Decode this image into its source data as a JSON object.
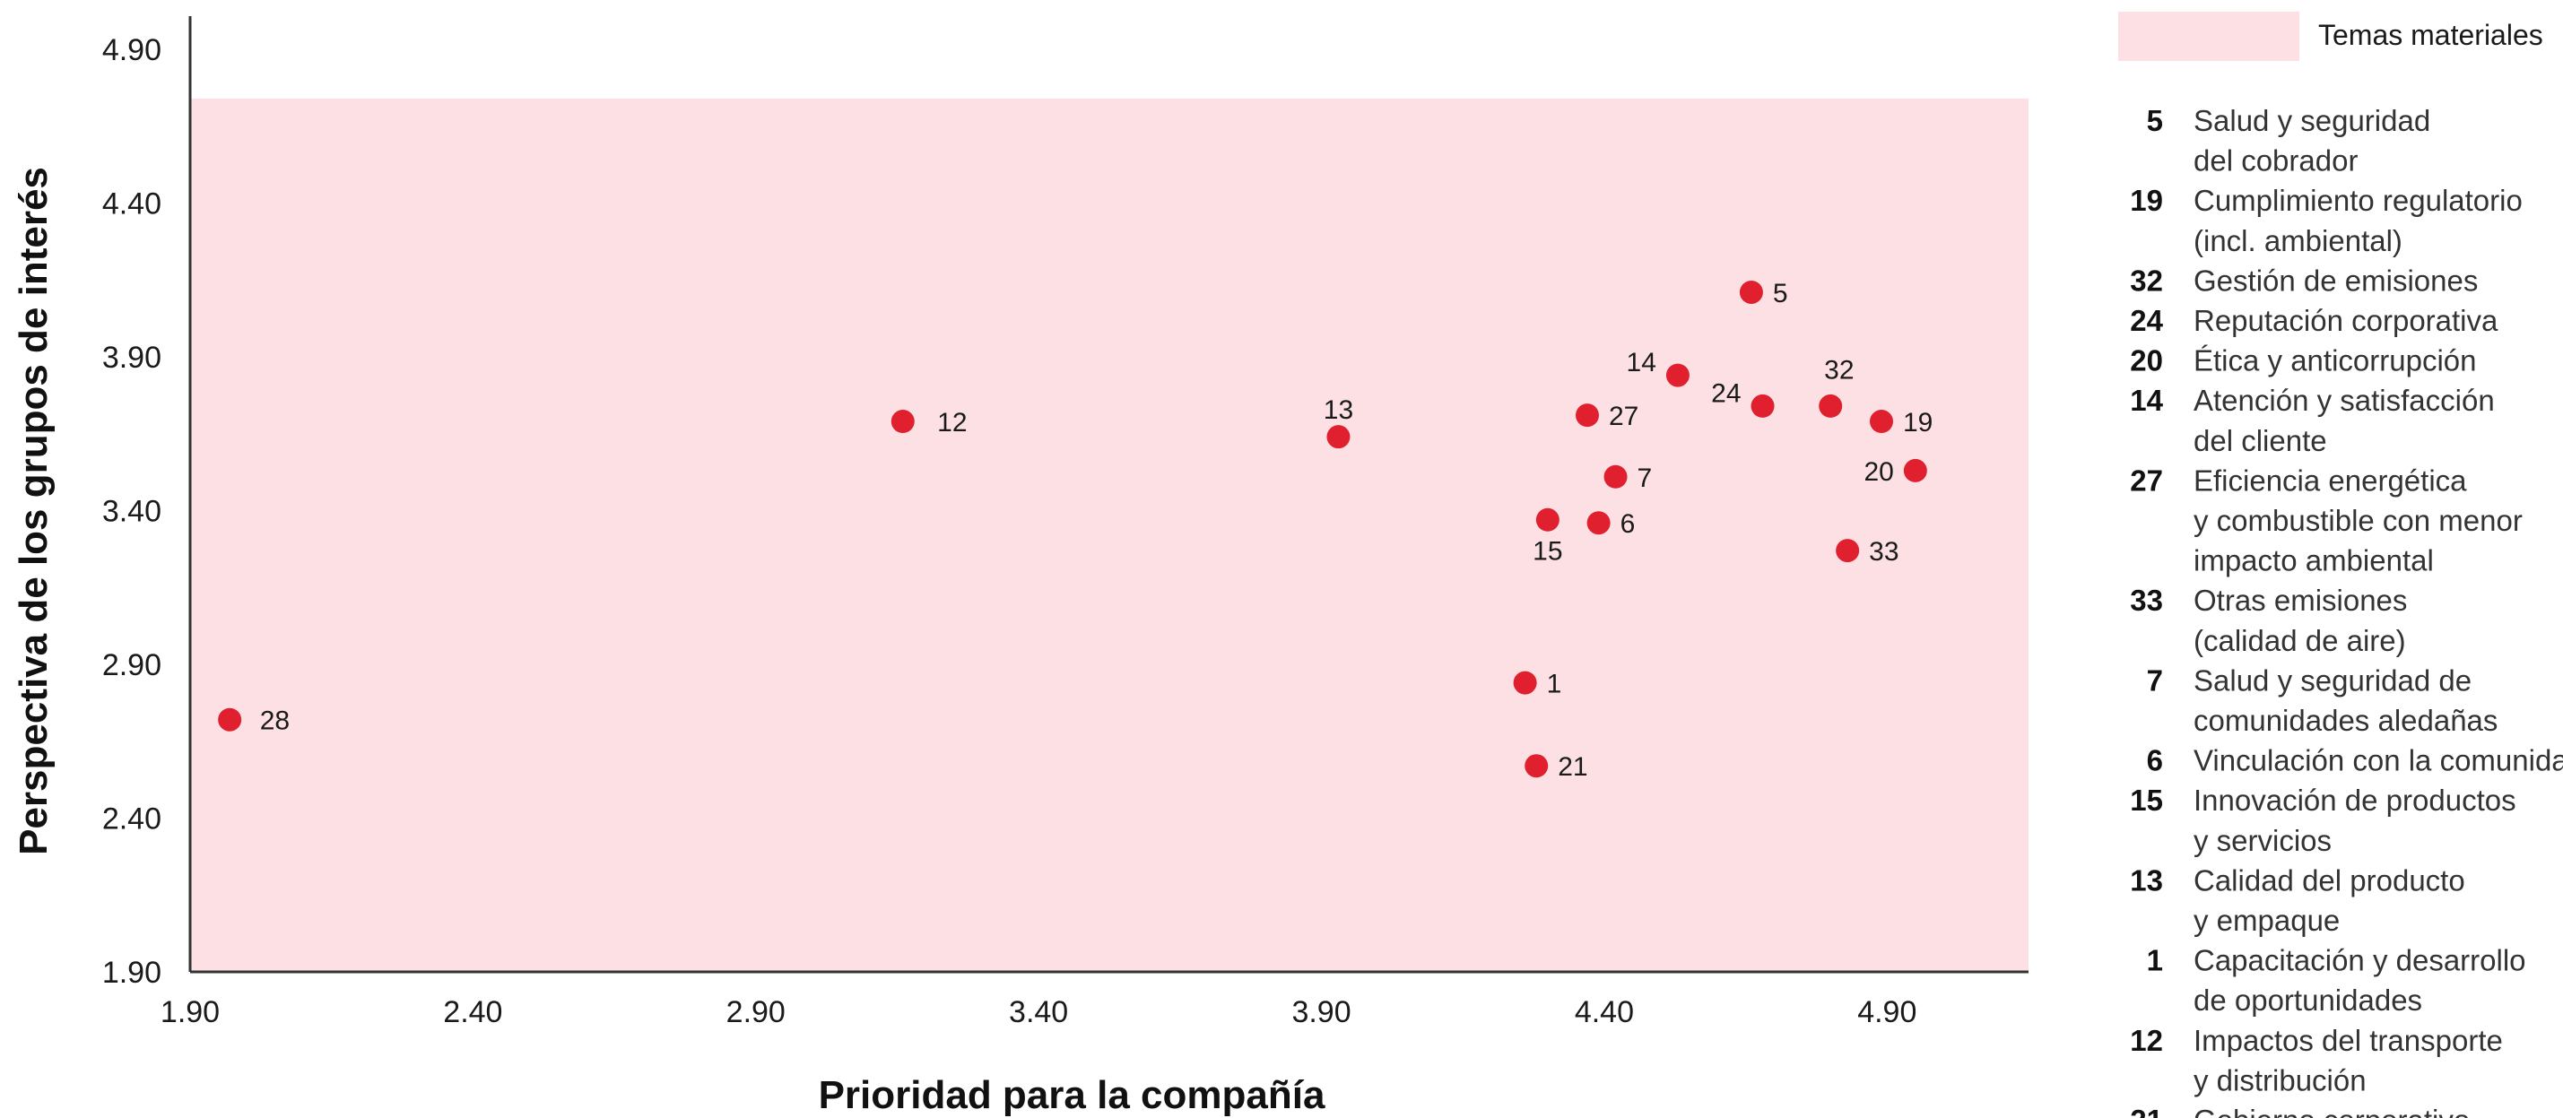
{
  "chart_data": {
    "type": "scatter",
    "xlabel": "Prioridad para la compañía",
    "ylabel": "Perspectiva de los grupos de interés",
    "xlim": [
      1.9,
      5.15
    ],
    "ylim": [
      1.9,
      4.95
    ],
    "x_ticks": [
      "1.90",
      "2.40",
      "2.90",
      "3.40",
      "3.90",
      "4.40",
      "4.90"
    ],
    "y_ticks": [
      "1.90",
      "2.40",
      "2.90",
      "3.40",
      "3.90",
      4.4,
      "4.90"
    ],
    "material_region": {
      "label": "Temas materiales",
      "x_range": [
        1.9,
        5.15
      ],
      "y_range": [
        1.9,
        4.74
      ],
      "color": "#fde0e3"
    },
    "marker_color": "#e0202e",
    "points": [
      {
        "id": "5",
        "x": 4.66,
        "y": 4.11
      },
      {
        "id": "14",
        "x": 4.53,
        "y": 3.84
      },
      {
        "id": "24",
        "x": 4.68,
        "y": 3.74
      },
      {
        "id": "32",
        "x": 4.8,
        "y": 3.74
      },
      {
        "id": "19",
        "x": 4.89,
        "y": 3.69
      },
      {
        "id": "20",
        "x": 4.95,
        "y": 3.53
      },
      {
        "id": "27",
        "x": 4.37,
        "y": 3.71
      },
      {
        "id": "7",
        "x": 4.42,
        "y": 3.51
      },
      {
        "id": "6",
        "x": 4.39,
        "y": 3.36
      },
      {
        "id": "15",
        "x": 4.3,
        "y": 3.37
      },
      {
        "id": "33",
        "x": 4.83,
        "y": 3.27
      },
      {
        "id": "13",
        "x": 3.93,
        "y": 3.64
      },
      {
        "id": "12",
        "x": 3.16,
        "y": 3.69
      },
      {
        "id": "1",
        "x": 4.26,
        "y": 2.84
      },
      {
        "id": "21",
        "x": 4.28,
        "y": 2.57
      },
      {
        "id": "28",
        "x": 1.97,
        "y": 2.72
      }
    ],
    "legend": [
      {
        "num": "5",
        "lines": [
          "Salud y seguridad",
          "del cobrador"
        ]
      },
      {
        "num": "19",
        "lines": [
          "Cumplimiento regulatorio",
          "(incl. ambiental)"
        ]
      },
      {
        "num": "32",
        "lines": [
          "Gestión de emisiones"
        ]
      },
      {
        "num": "24",
        "lines": [
          "Reputación corporativa"
        ]
      },
      {
        "num": "20",
        "lines": [
          "Ética y anticorrupción"
        ]
      },
      {
        "num": "14",
        "lines": [
          "Atención y satisfacción",
          "del cliente"
        ]
      },
      {
        "num": "27",
        "lines": [
          "Eficiencia energética",
          "y combustible con menor",
          "impacto ambiental"
        ]
      },
      {
        "num": "33",
        "lines": [
          "Otras emisiones",
          "(calidad de aire)"
        ]
      },
      {
        "num": "7",
        "lines": [
          "Salud y seguridad de",
          "comunidades aledañas"
        ]
      },
      {
        "num": "6",
        "lines": [
          "Vinculación con la comunidad"
        ]
      },
      {
        "num": "15",
        "lines": [
          "Innovación de productos",
          "y servicios"
        ]
      },
      {
        "num": "13",
        "lines": [
          "Calidad del producto",
          "y empaque"
        ]
      },
      {
        "num": "1",
        "lines": [
          "Capacitación y desarrollo",
          "de oportunidades"
        ]
      },
      {
        "num": "12",
        "lines": [
          "Impactos del transporte",
          "y distribución"
        ]
      },
      {
        "num": "21",
        "lines": [
          "Gobierno corporativo"
        ]
      }
    ]
  }
}
